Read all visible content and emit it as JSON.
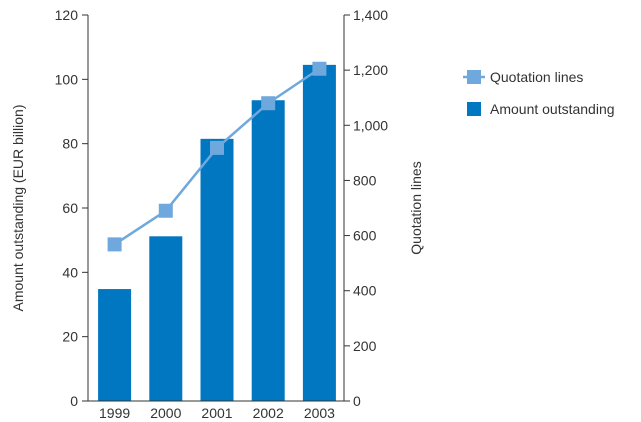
{
  "chart_data": {
    "type": "bar",
    "categories": [
      "1999",
      "2000",
      "2001",
      "2002",
      "2003"
    ],
    "series": [
      {
        "name": "Amount outstanding",
        "type": "bar",
        "axis": "left",
        "values": [
          34.8,
          51.2,
          81.5,
          93.5,
          104.5
        ]
      },
      {
        "name": "Quotation lines",
        "type": "line",
        "axis": "right",
        "values": [
          568,
          690,
          918,
          1080,
          1205
        ]
      }
    ],
    "ylabel": "Amount outstanding (EUR billion)",
    "y2label": "Quotation lines",
    "ylim": [
      0,
      120
    ],
    "y2lim": [
      0,
      1400
    ],
    "yticks": [
      "0",
      "20",
      "40",
      "60",
      "80",
      "100",
      "120"
    ],
    "y2ticks": [
      "0",
      "200",
      "400",
      "600",
      "800",
      "1,000",
      "1,200",
      "1,400"
    ],
    "grid": false,
    "legend": {
      "placement": "right",
      "entries": [
        "Quotation lines",
        "Amount outstanding"
      ]
    },
    "colors": {
      "bar": "#0077c0",
      "line": "#6fa8dc",
      "marker": "#6fa8dc"
    }
  }
}
